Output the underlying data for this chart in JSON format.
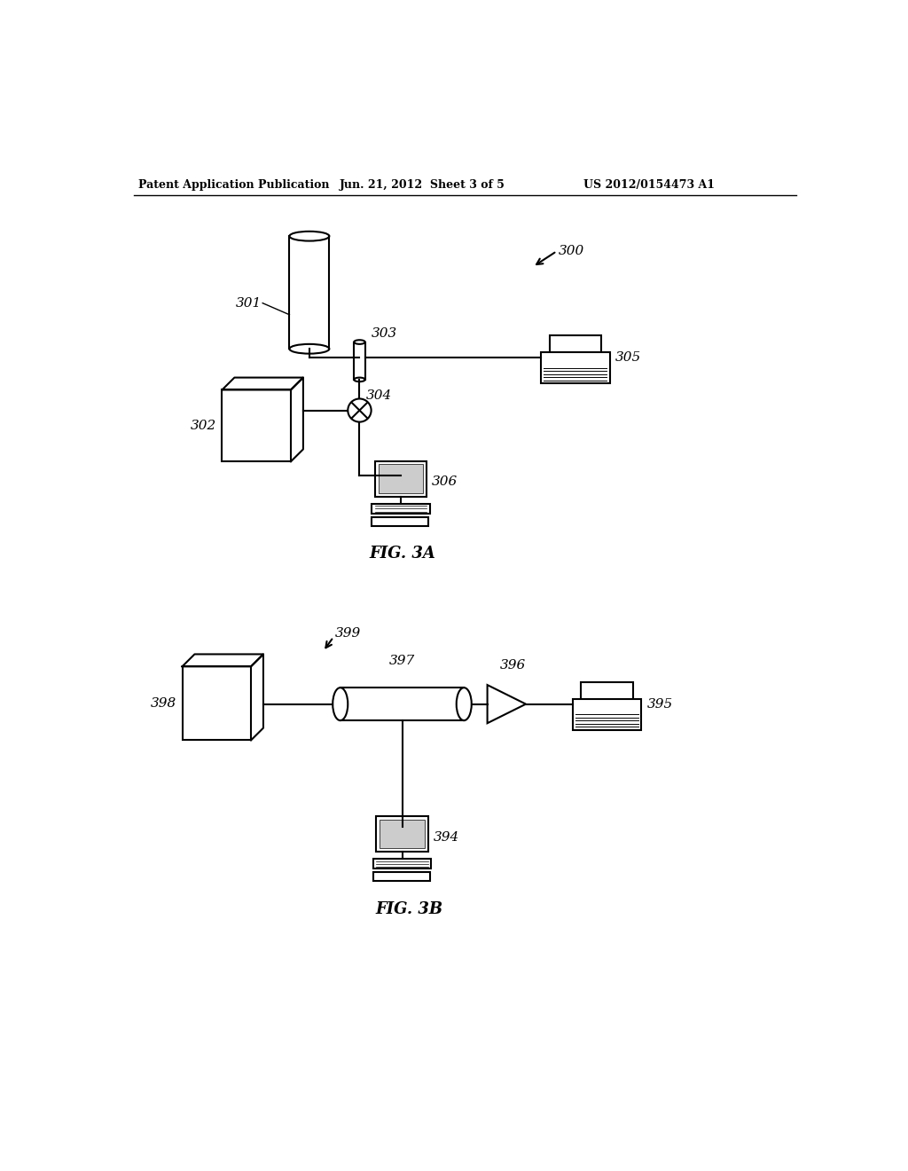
{
  "header_left": "Patent Application Publication",
  "header_mid": "Jun. 21, 2012  Sheet 3 of 5",
  "header_right": "US 2012/0154473 A1",
  "fig3a_label": "FIG. 3A",
  "fig3b_label": "FIG. 3B",
  "bg_color": "#ffffff",
  "line_color": "#000000",
  "text_color": "#000000",
  "label_300": "300",
  "label_301": "301",
  "label_302": "302",
  "label_303": "303",
  "label_304": "304",
  "label_305": "305",
  "label_306": "306",
  "label_394": "394",
  "label_395": "395",
  "label_396": "396",
  "label_397": "397",
  "label_398": "398",
  "label_399": "399"
}
